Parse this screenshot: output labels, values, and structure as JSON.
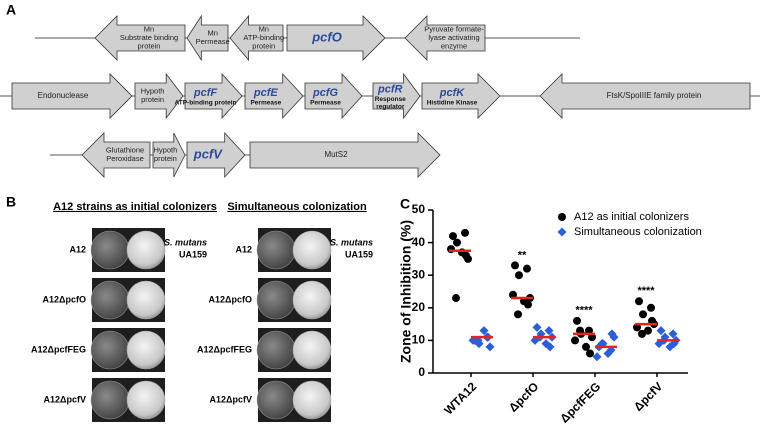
{
  "panel_a": {
    "label": "A",
    "rows": [
      [
        {
          "direction": "left",
          "lines": [
            "Mn",
            "Substrate binding",
            "protein"
          ]
        },
        {
          "direction": "left",
          "lines": [
            "Mn",
            "Permease"
          ]
        },
        {
          "direction": "left",
          "lines": [
            "Mn",
            "ATP-binding",
            "protein"
          ]
        },
        {
          "direction": "right",
          "gene": "pcfO"
        },
        {
          "direction": "left",
          "lines": [
            "Pyruvate formate-",
            "lyase activating",
            "enzyme"
          ]
        }
      ],
      [
        {
          "direction": "right",
          "lines": [
            "Endonuclease"
          ]
        },
        {
          "direction": "right",
          "lines": [
            "Hypoth",
            "protein"
          ]
        },
        {
          "direction": "right",
          "gene": "pcfF",
          "lines": [
            "ATP-binding protein"
          ]
        },
        {
          "direction": "right",
          "gene": "pcfE",
          "lines": [
            "Permease"
          ]
        },
        {
          "direction": "right",
          "gene": "pcfG",
          "lines": [
            "Permease"
          ]
        },
        {
          "direction": "right",
          "gene": "pcfR",
          "lines": [
            "Response",
            "regulator"
          ]
        },
        {
          "direction": "right",
          "gene": "pcfK",
          "lines": [
            "Histidine Kinase"
          ]
        },
        {
          "direction": "left",
          "lines": [
            "FtsK/SpoIIIE family protein"
          ]
        }
      ],
      [
        {
          "direction": "left",
          "lines": [
            "Glutathione",
            "Peroxidase"
          ]
        },
        {
          "direction": "right",
          "lines": [
            "Hypoth",
            "protein"
          ]
        },
        {
          "direction": "right",
          "gene": "pcfV"
        },
        {
          "direction": "right",
          "lines": [
            "MutS2"
          ]
        }
      ]
    ]
  },
  "panel_b": {
    "label": "B",
    "columns": [
      {
        "title": "A12 strains as initial colonizers",
        "strains": [
          "A12",
          "A12ΔpcfO",
          "A12ΔpcfFEG",
          "A12ΔpcfV"
        ],
        "reference": "S. mutans",
        "reference_strain": "UA159"
      },
      {
        "title": "Simultaneous colonization",
        "strains": [
          "A12",
          "A12ΔpcfO",
          "A12ΔpcfFEG",
          "A12ΔpcfV"
        ],
        "reference": "S. mutans",
        "reference_strain": "UA159"
      }
    ]
  },
  "chart_data": {
    "type": "dotplot",
    "label": "C",
    "y_label": "Zone of Inhibition (%)",
    "categories": [
      "WTA12",
      "ΔpcfO",
      "ΔpcfFEG",
      "ΔpcfV"
    ],
    "significance": [
      null,
      "**",
      "****",
      "****"
    ],
    "ylim": [
      0,
      50
    ],
    "yticks": [
      0,
      10,
      20,
      30,
      40,
      50
    ],
    "legend": "top-right",
    "median_color": "#e8221e",
    "series": [
      {
        "name": "A12 as initial colonizers",
        "color": "#000000",
        "marker": "circle",
        "values": [
          [
            42,
            43,
            40,
            35,
            38,
            37,
            36,
            23
          ],
          [
            33,
            32,
            30,
            23,
            24,
            22,
            21,
            18
          ],
          [
            16,
            13,
            12,
            11,
            10,
            8,
            6,
            13
          ],
          [
            22,
            20,
            18,
            15,
            14,
            13,
            16,
            12
          ]
        ],
        "medians": [
          37.5,
          23,
          12,
          15
        ]
      },
      {
        "name": "Simultaneous colonization",
        "color": "#2a5fd8",
        "marker": "diamond",
        "values": [
          [
            10,
            11,
            9,
            8,
            10,
            13,
            11,
            10
          ],
          [
            14,
            13,
            12,
            11,
            10,
            9,
            8,
            11
          ],
          [
            8,
            7,
            9,
            11,
            5,
            6,
            12,
            9
          ],
          [
            13,
            12,
            11,
            10,
            9,
            8,
            9,
            10
          ]
        ],
        "medians": [
          11,
          11,
          8,
          10
        ]
      }
    ]
  }
}
